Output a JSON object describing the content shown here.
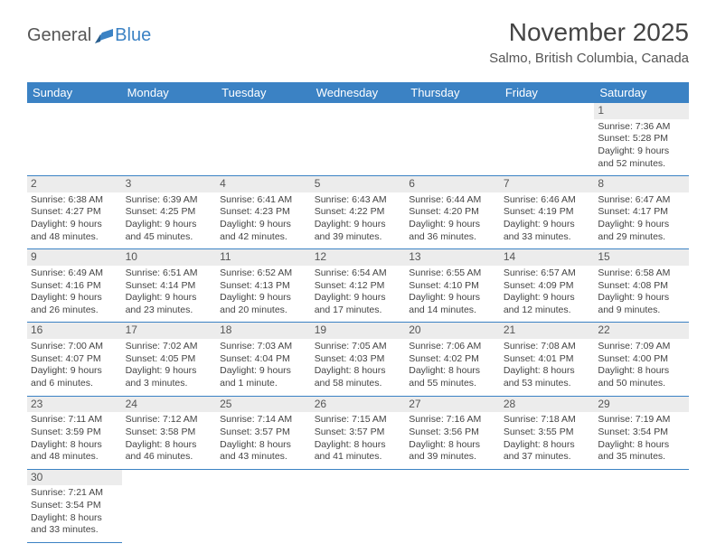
{
  "logo": {
    "general": "General",
    "blue": "Blue"
  },
  "title": "November 2025",
  "location": "Salmo, British Columbia, Canada",
  "dayHeaders": [
    "Sunday",
    "Monday",
    "Tuesday",
    "Wednesday",
    "Thursday",
    "Friday",
    "Saturday"
  ],
  "colors": {
    "headerBg": "#3b82c4",
    "headerText": "#ffffff",
    "border": "#3b82c4",
    "dayNumBg": "#ececec",
    "text": "#444444",
    "logoGray": "#555555",
    "logoBlue": "#3b82c4"
  },
  "weeks": [
    [
      {
        "empty": true
      },
      {
        "empty": true
      },
      {
        "empty": true
      },
      {
        "empty": true
      },
      {
        "empty": true
      },
      {
        "empty": true
      },
      {
        "num": "1",
        "sunrise": "Sunrise: 7:36 AM",
        "sunset": "Sunset: 5:28 PM",
        "daylight": "Daylight: 9 hours and 52 minutes."
      }
    ],
    [
      {
        "num": "2",
        "sunrise": "Sunrise: 6:38 AM",
        "sunset": "Sunset: 4:27 PM",
        "daylight": "Daylight: 9 hours and 48 minutes."
      },
      {
        "num": "3",
        "sunrise": "Sunrise: 6:39 AM",
        "sunset": "Sunset: 4:25 PM",
        "daylight": "Daylight: 9 hours and 45 minutes."
      },
      {
        "num": "4",
        "sunrise": "Sunrise: 6:41 AM",
        "sunset": "Sunset: 4:23 PM",
        "daylight": "Daylight: 9 hours and 42 minutes."
      },
      {
        "num": "5",
        "sunrise": "Sunrise: 6:43 AM",
        "sunset": "Sunset: 4:22 PM",
        "daylight": "Daylight: 9 hours and 39 minutes."
      },
      {
        "num": "6",
        "sunrise": "Sunrise: 6:44 AM",
        "sunset": "Sunset: 4:20 PM",
        "daylight": "Daylight: 9 hours and 36 minutes."
      },
      {
        "num": "7",
        "sunrise": "Sunrise: 6:46 AM",
        "sunset": "Sunset: 4:19 PM",
        "daylight": "Daylight: 9 hours and 33 minutes."
      },
      {
        "num": "8",
        "sunrise": "Sunrise: 6:47 AM",
        "sunset": "Sunset: 4:17 PM",
        "daylight": "Daylight: 9 hours and 29 minutes."
      }
    ],
    [
      {
        "num": "9",
        "sunrise": "Sunrise: 6:49 AM",
        "sunset": "Sunset: 4:16 PM",
        "daylight": "Daylight: 9 hours and 26 minutes."
      },
      {
        "num": "10",
        "sunrise": "Sunrise: 6:51 AM",
        "sunset": "Sunset: 4:14 PM",
        "daylight": "Daylight: 9 hours and 23 minutes."
      },
      {
        "num": "11",
        "sunrise": "Sunrise: 6:52 AM",
        "sunset": "Sunset: 4:13 PM",
        "daylight": "Daylight: 9 hours and 20 minutes."
      },
      {
        "num": "12",
        "sunrise": "Sunrise: 6:54 AM",
        "sunset": "Sunset: 4:12 PM",
        "daylight": "Daylight: 9 hours and 17 minutes."
      },
      {
        "num": "13",
        "sunrise": "Sunrise: 6:55 AM",
        "sunset": "Sunset: 4:10 PM",
        "daylight": "Daylight: 9 hours and 14 minutes."
      },
      {
        "num": "14",
        "sunrise": "Sunrise: 6:57 AM",
        "sunset": "Sunset: 4:09 PM",
        "daylight": "Daylight: 9 hours and 12 minutes."
      },
      {
        "num": "15",
        "sunrise": "Sunrise: 6:58 AM",
        "sunset": "Sunset: 4:08 PM",
        "daylight": "Daylight: 9 hours and 9 minutes."
      }
    ],
    [
      {
        "num": "16",
        "sunrise": "Sunrise: 7:00 AM",
        "sunset": "Sunset: 4:07 PM",
        "daylight": "Daylight: 9 hours and 6 minutes."
      },
      {
        "num": "17",
        "sunrise": "Sunrise: 7:02 AM",
        "sunset": "Sunset: 4:05 PM",
        "daylight": "Daylight: 9 hours and 3 minutes."
      },
      {
        "num": "18",
        "sunrise": "Sunrise: 7:03 AM",
        "sunset": "Sunset: 4:04 PM",
        "daylight": "Daylight: 9 hours and 1 minute."
      },
      {
        "num": "19",
        "sunrise": "Sunrise: 7:05 AM",
        "sunset": "Sunset: 4:03 PM",
        "daylight": "Daylight: 8 hours and 58 minutes."
      },
      {
        "num": "20",
        "sunrise": "Sunrise: 7:06 AM",
        "sunset": "Sunset: 4:02 PM",
        "daylight": "Daylight: 8 hours and 55 minutes."
      },
      {
        "num": "21",
        "sunrise": "Sunrise: 7:08 AM",
        "sunset": "Sunset: 4:01 PM",
        "daylight": "Daylight: 8 hours and 53 minutes."
      },
      {
        "num": "22",
        "sunrise": "Sunrise: 7:09 AM",
        "sunset": "Sunset: 4:00 PM",
        "daylight": "Daylight: 8 hours and 50 minutes."
      }
    ],
    [
      {
        "num": "23",
        "sunrise": "Sunrise: 7:11 AM",
        "sunset": "Sunset: 3:59 PM",
        "daylight": "Daylight: 8 hours and 48 minutes."
      },
      {
        "num": "24",
        "sunrise": "Sunrise: 7:12 AM",
        "sunset": "Sunset: 3:58 PM",
        "daylight": "Daylight: 8 hours and 46 minutes."
      },
      {
        "num": "25",
        "sunrise": "Sunrise: 7:14 AM",
        "sunset": "Sunset: 3:57 PM",
        "daylight": "Daylight: 8 hours and 43 minutes."
      },
      {
        "num": "26",
        "sunrise": "Sunrise: 7:15 AM",
        "sunset": "Sunset: 3:57 PM",
        "daylight": "Daylight: 8 hours and 41 minutes."
      },
      {
        "num": "27",
        "sunrise": "Sunrise: 7:16 AM",
        "sunset": "Sunset: 3:56 PM",
        "daylight": "Daylight: 8 hours and 39 minutes."
      },
      {
        "num": "28",
        "sunrise": "Sunrise: 7:18 AM",
        "sunset": "Sunset: 3:55 PM",
        "daylight": "Daylight: 8 hours and 37 minutes."
      },
      {
        "num": "29",
        "sunrise": "Sunrise: 7:19 AM",
        "sunset": "Sunset: 3:54 PM",
        "daylight": "Daylight: 8 hours and 35 minutes."
      }
    ],
    [
      {
        "num": "30",
        "sunrise": "Sunrise: 7:21 AM",
        "sunset": "Sunset: 3:54 PM",
        "daylight": "Daylight: 8 hours and 33 minutes."
      },
      {
        "empty": true
      },
      {
        "empty": true
      },
      {
        "empty": true
      },
      {
        "empty": true
      },
      {
        "empty": true
      },
      {
        "empty": true
      }
    ]
  ]
}
